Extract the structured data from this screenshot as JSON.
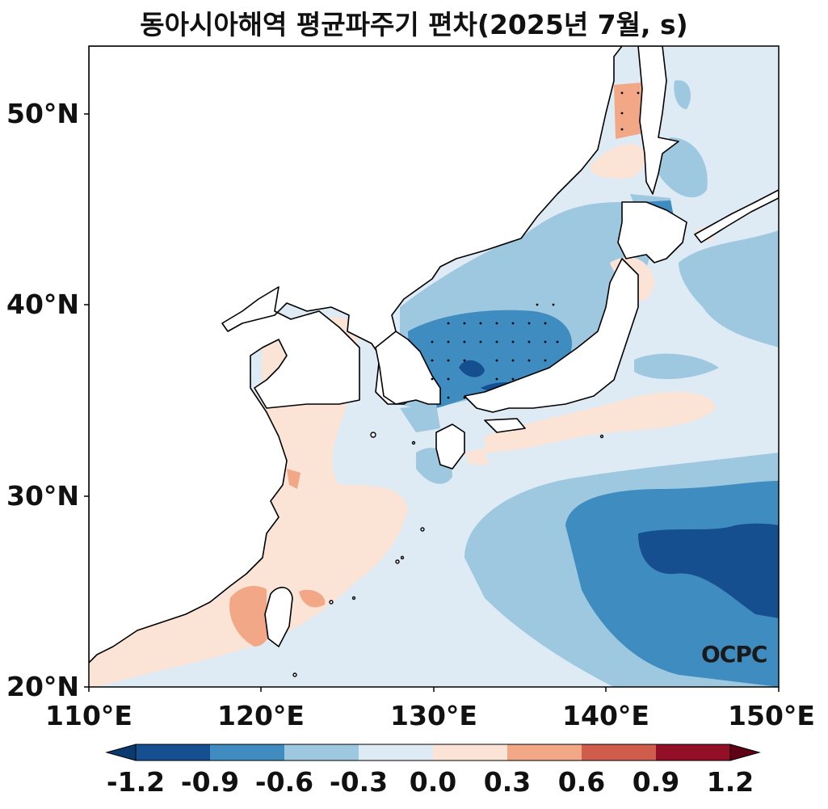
{
  "title": "동아시아해역 평균파주기 편차(2025년 7월, s)",
  "logo_text": "OCPC",
  "axes": {
    "lat_ticks": [
      "20°N",
      "30°N",
      "40°N",
      "50°N"
    ],
    "lon_ticks": [
      "110°E",
      "120°E",
      "130°E",
      "140°E",
      "150°E"
    ]
  },
  "colorbar": {
    "ticks": [
      "-1.2",
      "-0.9",
      "-0.6",
      "-0.3",
      "0.0",
      "0.3",
      "0.6",
      "0.9",
      "1.2"
    ],
    "colors": [
      "#0b3a6f",
      "#154f8f",
      "#3f8cc1",
      "#9dc8e0",
      "#deebf4",
      "#fbe3d6",
      "#f2a886",
      "#d05c4b",
      "#930f27",
      "#5f0016"
    ]
  },
  "colors": {
    "land": "#ffffff",
    "coast": "#000000",
    "frame": "#000000"
  },
  "chart_data": {
    "type": "heatmap",
    "title": "동아시아해역 평균파주기 편차(2025년 7월, s)",
    "extent": {
      "lon": [
        110,
        150
      ],
      "lat": [
        20,
        53
      ]
    },
    "units": "s",
    "levels": [
      -1.2,
      -0.9,
      -0.6,
      -0.3,
      0.0,
      0.3,
      0.6,
      0.9,
      1.2
    ],
    "regions": [
      {
        "name": "East Sea central",
        "anomaly_range": [
          -0.9,
          -0.6
        ]
      },
      {
        "name": "East Sea core near 132E 37N",
        "anomaly_range": [
          -1.2,
          -0.9
        ]
      },
      {
        "name": "Northwest Pacific 140-150E 22-30N",
        "anomaly_range": [
          -0.9,
          -0.6
        ]
      },
      {
        "name": "Northwest Pacific core 143-150E 24-28N",
        "anomaly_range": [
          -1.2,
          -0.9
        ]
      },
      {
        "name": "Yellow Sea and East China Sea",
        "anomaly_range": [
          0.0,
          0.3
        ]
      },
      {
        "name": "Taiwan Strait",
        "anomaly_range": [
          0.3,
          0.6
        ]
      },
      {
        "name": "Tatar Strait",
        "anomaly_range": [
          0.3,
          0.6
        ]
      },
      {
        "name": "South of Japan",
        "anomaly_range": [
          0.0,
          0.3
        ]
      }
    ]
  }
}
